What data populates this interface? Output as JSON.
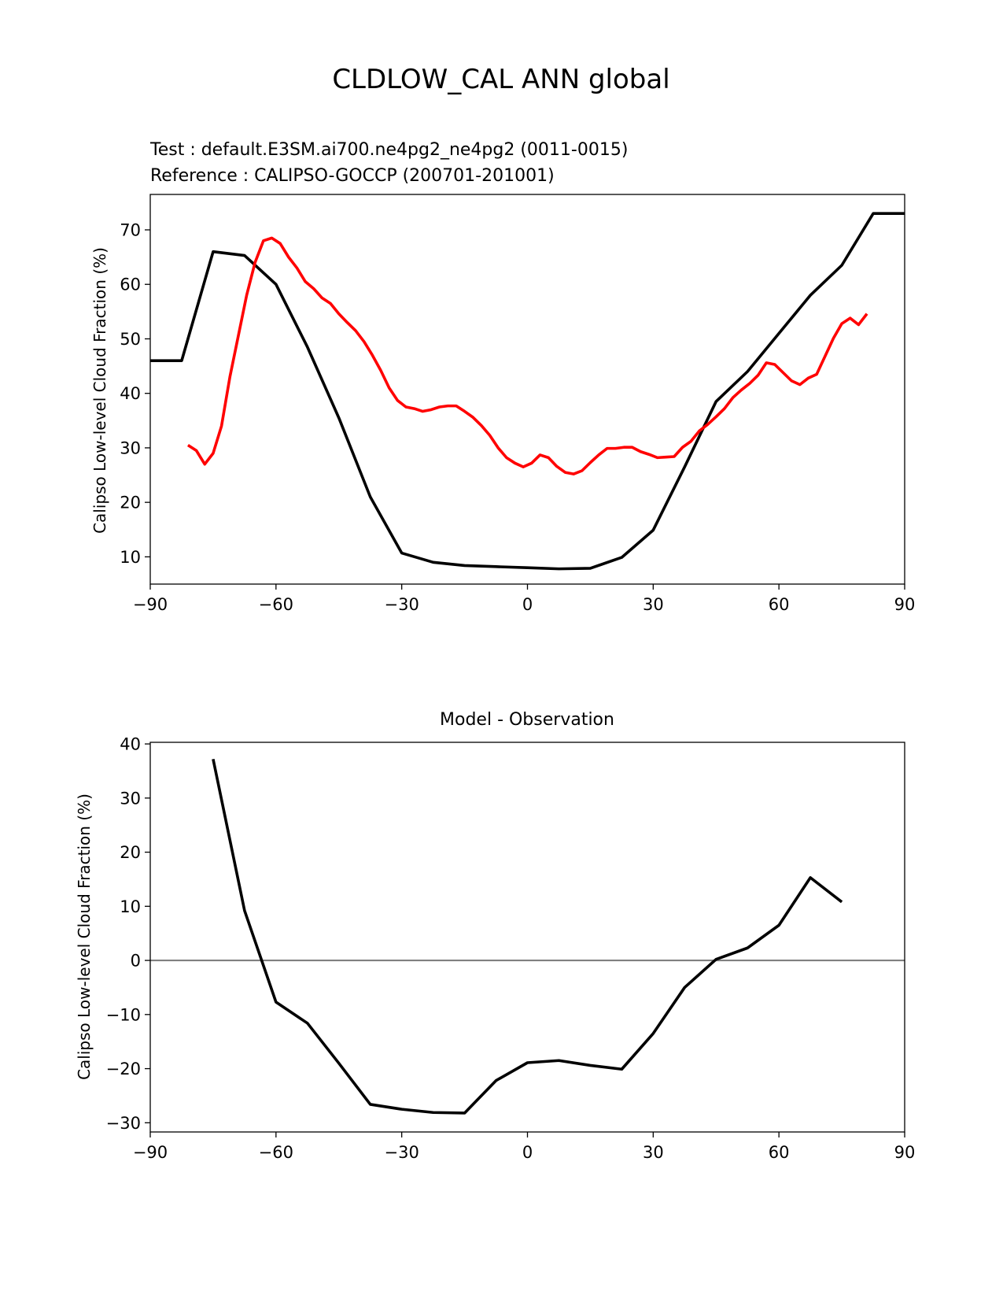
{
  "figure": {
    "title": "CLDLOW_CAL ANN global"
  },
  "top_panel": {
    "test_label": "Test : default.E3SM.ai700.ne4pg2_ne4pg2 (0011-0015)",
    "reference_label": "Reference : CALIPSO-GOCCP (200701-201001)",
    "ylabel": "Calipso Low-level Cloud Fraction (%)"
  },
  "bottom_panel": {
    "title": "Model - Observation",
    "ylabel": "Calipso Low-level Cloud Fraction (%)"
  },
  "colors": {
    "test": "#000000",
    "reference": "#ff0000",
    "zero_line": "#808080"
  },
  "chart_data": [
    {
      "type": "line",
      "title": "",
      "xlabel": "",
      "ylabel": "Calipso Low-level Cloud Fraction (%)",
      "xlim": [
        -90,
        90
      ],
      "ylim": [
        5,
        76.5
      ],
      "xticks": [
        -90,
        -60,
        -30,
        0,
        30,
        60,
        90
      ],
      "yticks": [
        10,
        20,
        30,
        40,
        50,
        60,
        70
      ],
      "grid": false,
      "series": [
        {
          "role": "test",
          "color": "#000000",
          "x": [
            -92,
            -82.5,
            -75,
            -67.5,
            -60,
            -52.5,
            -45,
            -37.5,
            -30,
            -22.5,
            -15,
            -7.5,
            0,
            7.5,
            15,
            22.5,
            30,
            37.5,
            45,
            52.5,
            60,
            67.5,
            75,
            82.5,
            92
          ],
          "y": [
            46,
            46,
            66,
            65.3,
            60,
            48.5,
            35.5,
            21,
            10.7,
            9,
            8.4,
            8.2,
            8,
            7.8,
            7.9,
            9.9,
            14.9,
            26.5,
            38.5,
            44,
            51,
            58,
            63.5,
            73,
            73
          ]
        },
        {
          "role": "reference",
          "color": "#ff0000",
          "x": [
            -81,
            -79,
            -77,
            -75,
            -73,
            -71,
            -69,
            -67,
            -65,
            -63,
            -61,
            -59,
            -57,
            -55,
            -53,
            -51,
            -49,
            -47,
            -45,
            -43,
            -41,
            -39,
            -37,
            -35,
            -33,
            -31,
            -29,
            -27,
            -25,
            -23,
            -21,
            -19,
            -17,
            -15,
            -13,
            -11,
            -9,
            -7,
            -5,
            -3,
            -1,
            1,
            3,
            5,
            7,
            9,
            11,
            13,
            15,
            17,
            19,
            21,
            23,
            25,
            27,
            29,
            31,
            33,
            35,
            37,
            39,
            41,
            43,
            45,
            47,
            49,
            51,
            53,
            55,
            57,
            59,
            61,
            63,
            65,
            67,
            69,
            71,
            73,
            75,
            77,
            79,
            81
          ],
          "y": [
            30.5,
            29.5,
            27,
            29,
            34,
            43,
            50.5,
            58,
            64,
            68,
            68.5,
            67.5,
            65,
            63,
            60.5,
            59.2,
            57.5,
            56.5,
            54.6,
            53,
            51.5,
            49.5,
            47,
            44.2,
            41,
            38.7,
            37.5,
            37.2,
            36.7,
            37,
            37.5,
            37.7,
            37.7,
            36.7,
            35.6,
            34.1,
            32.3,
            30,
            28.2,
            27.2,
            26.5,
            27.2,
            28.7,
            28.2,
            26.6,
            25.5,
            25.2,
            25.8,
            27.3,
            28.7,
            29.9,
            29.9,
            30.1,
            30.1,
            29.3,
            28.8,
            28.2,
            28.3,
            28.4,
            30.1,
            31.2,
            33.1,
            34.3,
            35.7,
            37.2,
            39.2,
            40.6,
            41.8,
            43.3,
            45.6,
            45.3,
            43.8,
            42.3,
            41.6,
            42.8,
            43.5,
            46.8,
            50.1,
            52.8,
            53.8,
            52.6,
            54.6
          ]
        }
      ]
    },
    {
      "type": "line",
      "title": "Model - Observation",
      "xlabel": "",
      "ylabel": "Calipso Low-level Cloud Fraction (%)",
      "xlim": [
        -90,
        90
      ],
      "ylim": [
        -31.7,
        40.3
      ],
      "xticks": [
        -90,
        -60,
        -30,
        0,
        30,
        60,
        90
      ],
      "yticks": [
        -30,
        -20,
        -10,
        0,
        10,
        20,
        30,
        40
      ],
      "grid": false,
      "zero_line": 0,
      "series": [
        {
          "role": "difference",
          "color": "#000000",
          "x": [
            -75,
            -67.5,
            -60,
            -52.5,
            -45,
            -37.5,
            -30,
            -22.5,
            -15,
            -7.5,
            0,
            7.5,
            15,
            22.5,
            30,
            37.5,
            45,
            52.5,
            60,
            67.5,
            75
          ],
          "y": [
            37.2,
            9.2,
            -7.7,
            -11.6,
            -19,
            -26.6,
            -27.5,
            -28.1,
            -28.2,
            -22.2,
            -18.9,
            -18.5,
            -19.4,
            -20.1,
            -13.5,
            -5,
            0.2,
            2.3,
            6.5,
            15.3,
            10.8
          ]
        }
      ]
    }
  ]
}
